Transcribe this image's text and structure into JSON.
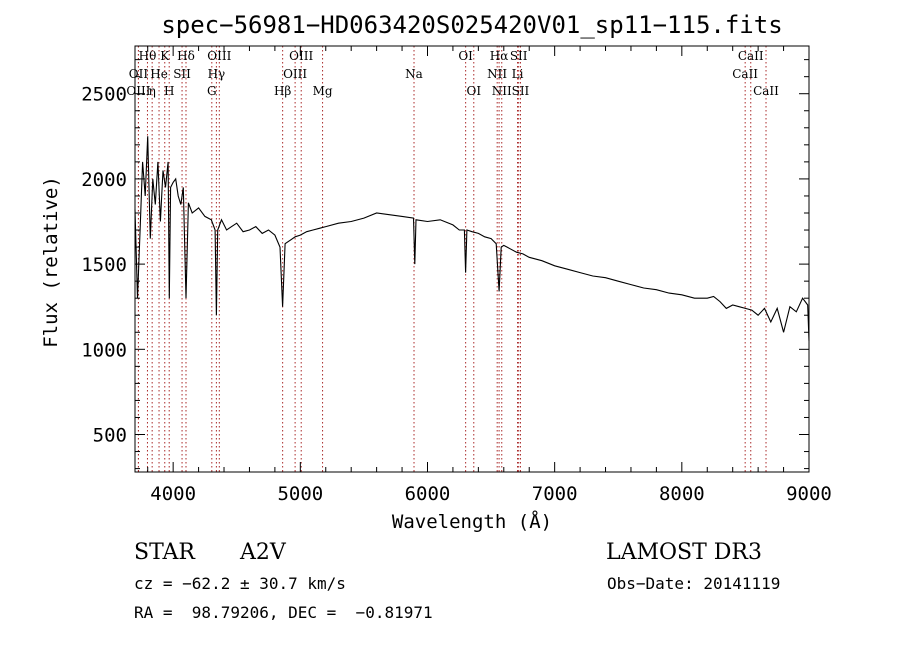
{
  "chart_data": {
    "type": "line",
    "title": "spec−56981−HD063420S025420V01_sp11−115.fits",
    "xlabel": "Wavelength (Å)",
    "ylabel": "Flux (relative)",
    "xlim": [
      3700,
      9000
    ],
    "ylim": [
      280,
      2780
    ],
    "xticks": [
      4000,
      5000,
      6000,
      7000,
      8000,
      9000
    ],
    "yticks": [
      500,
      1000,
      1500,
      2000,
      2500
    ],
    "grid": false,
    "series": [
      {
        "name": "spectrum",
        "x": [
          3700,
          3720,
          3740,
          3760,
          3780,
          3800,
          3820,
          3840,
          3860,
          3880,
          3900,
          3920,
          3940,
          3960,
          3970,
          3980,
          4000,
          4020,
          4040,
          4060,
          4080,
          4101,
          4120,
          4150,
          4200,
          4250,
          4300,
          4330,
          4340,
          4350,
          4380,
          4420,
          4460,
          4500,
          4550,
          4600,
          4650,
          4700,
          4750,
          4800,
          4840,
          4861,
          4880,
          4920,
          4960,
          5000,
          5050,
          5100,
          5150,
          5200,
          5300,
          5400,
          5500,
          5600,
          5700,
          5800,
          5890,
          5900,
          5910,
          6000,
          6100,
          6200,
          6250,
          6290,
          6300,
          6310,
          6350,
          6400,
          6450,
          6500,
          6540,
          6563,
          6580,
          6600,
          6650,
          6700,
          6750,
          6800,
          6900,
          7000,
          7100,
          7200,
          7300,
          7400,
          7500,
          7600,
          7700,
          7800,
          7900,
          8000,
          8100,
          8200,
          8250,
          8300,
          8350,
          8400,
          8450,
          8500,
          8550,
          8600,
          8650,
          8700,
          8750,
          8800,
          8850,
          8900,
          8950,
          8990,
          9000
        ],
        "y": [
          1820,
          1300,
          1700,
          2100,
          1900,
          2250,
          1650,
          2000,
          1850,
          2100,
          1750,
          2050,
          1950,
          2100,
          1300,
          1950,
          1980,
          2000,
          1900,
          1850,
          1950,
          1300,
          1860,
          1800,
          1830,
          1780,
          1760,
          1700,
          1200,
          1700,
          1760,
          1700,
          1720,
          1740,
          1690,
          1700,
          1720,
          1680,
          1700,
          1670,
          1600,
          1250,
          1620,
          1640,
          1660,
          1670,
          1690,
          1700,
          1710,
          1720,
          1740,
          1750,
          1770,
          1800,
          1790,
          1780,
          1770,
          1500,
          1760,
          1750,
          1760,
          1730,
          1700,
          1700,
          1450,
          1700,
          1690,
          1680,
          1660,
          1650,
          1620,
          1340,
          1600,
          1610,
          1590,
          1570,
          1560,
          1540,
          1520,
          1490,
          1470,
          1450,
          1430,
          1420,
          1400,
          1380,
          1360,
          1350,
          1330,
          1320,
          1300,
          1300,
          1310,
          1280,
          1240,
          1260,
          1250,
          1240,
          1230,
          1200,
          1240,
          1160,
          1240,
          1100,
          1250,
          1220,
          1300,
          1260,
          1050
        ]
      }
    ],
    "spectral_lines": [
      {
        "label": "Hθ",
        "wavelength": 3798,
        "row": 1
      },
      {
        "label": "OII",
        "wavelength": 3727,
        "row": 2
      },
      {
        "label": "OIII",
        "wavelength": 3727,
        "row": 3
      },
      {
        "label": "K",
        "wavelength": 3934,
        "row": 1
      },
      {
        "label": "He",
        "wavelength": 3889,
        "row": 2
      },
      {
        "label": "η",
        "wavelength": 3835,
        "row": 3
      },
      {
        "label": "Hδ",
        "wavelength": 4101,
        "row": 1
      },
      {
        "label": "SII",
        "wavelength": 4070,
        "row": 2
      },
      {
        "label": "H",
        "wavelength": 3969,
        "row": 3
      },
      {
        "label": "OIII",
        "wavelength": 4363,
        "row": 1
      },
      {
        "label": "Hγ",
        "wavelength": 4340,
        "row": 2
      },
      {
        "label": "G",
        "wavelength": 4304,
        "row": 3
      },
      {
        "label": "Hβ",
        "wavelength": 4861,
        "row": 3
      },
      {
        "label": "OIII",
        "wavelength": 5007,
        "row": 1
      },
      {
        "label": "OIII",
        "wavelength": 4959,
        "row": 2
      },
      {
        "label": "Mg",
        "wavelength": 5175,
        "row": 3
      },
      {
        "label": "Na",
        "wavelength": 5894,
        "row": 2
      },
      {
        "label": "OI",
        "wavelength": 6300,
        "row": 1
      },
      {
        "label": "OI",
        "wavelength": 6364,
        "row": 3
      },
      {
        "label": "Hα",
        "wavelength": 6563,
        "row": 1
      },
      {
        "label": "NII",
        "wavelength": 6548,
        "row": 2
      },
      {
        "label": "NII",
        "wavelength": 6584,
        "row": 3
      },
      {
        "label": "SII",
        "wavelength": 6717,
        "row": 1
      },
      {
        "label": "Li",
        "wavelength": 6708,
        "row": 2
      },
      {
        "label": "SII",
        "wavelength": 6731,
        "row": 3
      },
      {
        "label": "CaII",
        "wavelength": 8542,
        "row": 1
      },
      {
        "label": "CaII",
        "wavelength": 8498,
        "row": 2
      },
      {
        "label": "CaII",
        "wavelength": 8662,
        "row": 3
      }
    ]
  },
  "info": {
    "object_class": "STAR",
    "subclass": "A2V",
    "survey": "LAMOST DR3",
    "cz": "cz = −62.2 ± 30.7 km/s",
    "obs_date": "Obs−Date: 20141119",
    "coords": "RA =  98.79206, DEC =  −0.81971"
  },
  "colors": {
    "line_marker": "#aa2a2a",
    "spectrum": "#000000",
    "axes": "#000000"
  }
}
